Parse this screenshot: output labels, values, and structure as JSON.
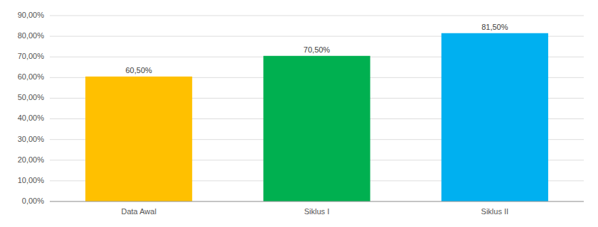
{
  "chart_data": {
    "type": "bar",
    "categories": [
      "Data Awal",
      "Siklus I",
      "Siklus II"
    ],
    "values": [
      0.605,
      0.705,
      0.815
    ],
    "value_labels": [
      "60,50%",
      "70,50%",
      "81,50%"
    ],
    "colors": [
      "#FFC000",
      "#00B050",
      "#00B0F0"
    ],
    "data_labels": true,
    "ylim": [
      0,
      0.9
    ],
    "yticks": [
      {
        "value": 0.0,
        "label": "0,00%"
      },
      {
        "value": 0.1,
        "label": "10,00%"
      },
      {
        "value": 0.2,
        "label": "20,00%"
      },
      {
        "value": 0.3,
        "label": "30,00%"
      },
      {
        "value": 0.4,
        "label": "40,00%"
      },
      {
        "value": 0.5,
        "label": "50,00%"
      },
      {
        "value": 0.6,
        "label": "60,00%"
      },
      {
        "value": 0.7,
        "label": "70,00%"
      },
      {
        "value": 0.8,
        "label": "80,00%"
      },
      {
        "value": 0.9,
        "label": "90,00%"
      }
    ],
    "grid": true
  }
}
